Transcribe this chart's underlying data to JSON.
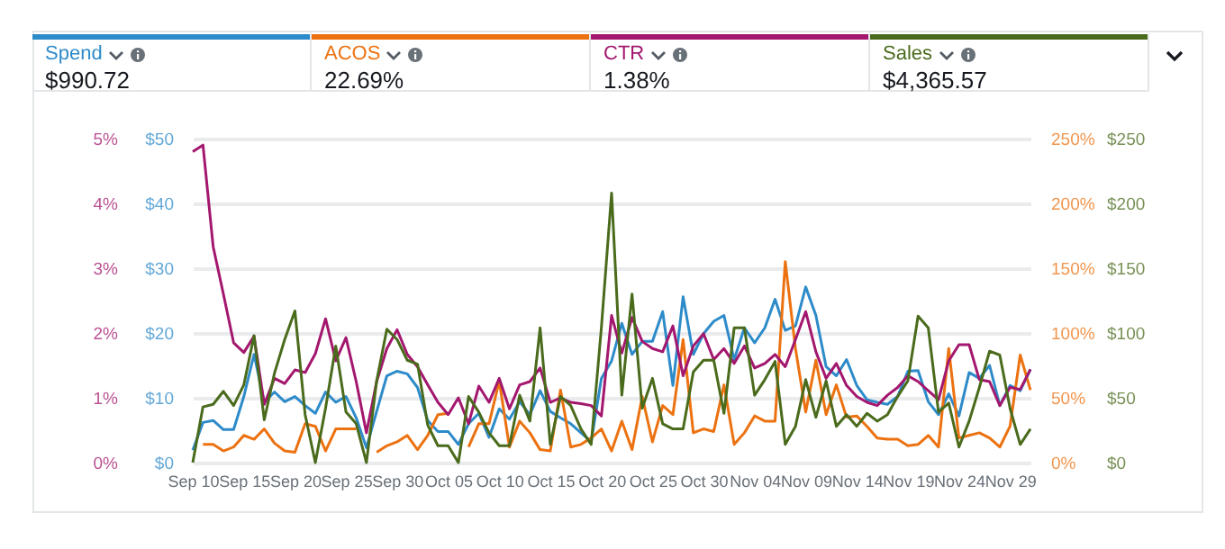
{
  "chart_data": [
    {
      "type": "line",
      "legend": "top",
      "grid": "y",
      "annotations": [
        "$990.72",
        "22.69%"
      ],
      "xlim": [
        "--09-10",
        "--12-01"
      ],
      "xticks": [
        {
          "value": "--09-10",
          "label": "Sep 10"
        },
        {
          "value": "--09-15",
          "label": "Sep 15"
        },
        {
          "value": "--09-20",
          "label": "Sep 20"
        },
        {
          "value": "--09-25",
          "label": "Sep 25"
        },
        {
          "value": "--09-30",
          "label": "Sep 30"
        },
        {
          "value": "--10-05",
          "label": "Oct 05"
        },
        {
          "value": "--10-10",
          "label": "Oct 10"
        },
        {
          "value": "--10-15",
          "label": "Oct 15"
        },
        {
          "value": "--10-20",
          "label": "Oct 20"
        },
        {
          "value": "--10-25",
          "label": "Oct 25"
        },
        {
          "value": "--10-30",
          "label": "Oct 30"
        },
        {
          "value": "--11-04",
          "label": "Nov 04"
        },
        {
          "value": "--11-09",
          "label": "Nov 09"
        },
        {
          "value": "--11-14",
          "label": "Nov 14"
        },
        {
          "value": "--11-19",
          "label": "Nov 19"
        },
        {
          "value": "--11-24",
          "label": "Nov 24"
        },
        {
          "value": "--11-29",
          "label": "Nov 29"
        }
      ],
      "ylim": [
        0,
        50
      ],
      "yticks": [
        {
          "value": 0,
          "label": "$0"
        },
        {
          "value": 10,
          "label": "$10"
        },
        {
          "value": 20,
          "label": "$20"
        },
        {
          "value": 30,
          "label": "$30"
        },
        {
          "value": 40,
          "label": "$40"
        },
        {
          "value": 50,
          "label": "$50"
        }
      ],
      "y2lim": [
        0,
        250
      ],
      "y2ticks": [
        {
          "value": 0,
          "label": "0%"
        },
        {
          "value": 50,
          "label": "50%"
        },
        {
          "value": 100,
          "label": "100%"
        },
        {
          "value": 150,
          "label": "150%"
        },
        {
          "value": 200,
          "label": "200%"
        },
        {
          "value": 250,
          "label": "250%"
        }
      ],
      "x": [
        "--09-10",
        "--09-11",
        "--09-12",
        "--09-13",
        "--09-14",
        "--09-15",
        "--09-16",
        "--09-17",
        "--09-18",
        "--09-19",
        "--09-20",
        "--09-21",
        "--09-22",
        "--09-23",
        "--09-24",
        "--09-25",
        "--09-26",
        "--09-27",
        "--09-28",
        "--09-29",
        "--09-30",
        "--10-01",
        "--10-02",
        "--10-03",
        "--10-04",
        "--10-05",
        "--10-06",
        "--10-07",
        "--10-08",
        "--10-09",
        "--10-10",
        "--10-11",
        "--10-12",
        "--10-13",
        "--10-14",
        "--10-15",
        "--10-16",
        "--10-17",
        "--10-18",
        "--10-19",
        "--10-20",
        "--10-21",
        "--10-22",
        "--10-23",
        "--10-24",
        "--10-25",
        "--10-26",
        "--10-27",
        "--10-28",
        "--10-29",
        "--10-30",
        "--10-31",
        "--11-01",
        "--11-02",
        "--11-03",
        "--11-04",
        "--11-05",
        "--11-06",
        "--11-07",
        "--11-08",
        "--11-09",
        "--11-10",
        "--11-11",
        "--11-12",
        "--11-13",
        "--11-14",
        "--11-15",
        "--11-16",
        "--11-17",
        "--11-18",
        "--11-19",
        "--11-20",
        "--11-21",
        "--11-22",
        "--11-23",
        "--11-24",
        "--11-25",
        "--11-26",
        "--11-27",
        "--11-28",
        "--11-29",
        "--11-30",
        "--12-01"
      ],
      "series": [
        {
          "name": "Spend",
          "color": "#2e8bc9",
          "values": [
            1.9,
            6.2,
            6.5,
            5.1,
            5.1,
            10.2,
            16.7,
            9.3,
            10.9,
            9.4,
            10.2,
            8.8,
            7.6,
            10.9,
            9.3,
            10.2,
            6.9,
            2.3,
            7.9,
            13.4,
            14.1,
            13.7,
            11.6,
            6.5,
            4.8,
            4.8,
            2.8,
            6.0,
            7.6,
            3.9,
            8.3,
            6.7,
            9.4,
            7.4,
            11.1,
            7.9,
            6.9,
            6.0,
            4.6,
            3.2,
            13,
            15.7,
            21.5,
            16.7,
            18.7,
            18.7,
            23.3,
            11.9,
            25.6,
            16.7,
            19.9,
            21.8,
            22.7,
            15.9,
            20.8,
            18.5,
            20.8,
            25.2,
            20.4,
            21.1,
            27.1,
            22.7,
            14.8,
            13.4,
            15.9,
            11.9,
            9.7,
            9.3,
            9.0,
            10.2,
            14.1,
            14.2,
            9.4,
            7.4,
            10.6,
            7.2,
            13.9,
            13,
            15,
            8.8,
            11.9,
            11.1,
            14.4
          ]
        },
        {
          "name": "ACOS",
          "color": "#ec7211",
          "axis": "y2",
          "values": [
            null,
            14,
            14,
            9,
            12,
            21,
            18,
            26,
            15,
            9,
            8,
            30,
            28,
            9,
            26,
            26,
            26,
            null,
            8,
            13,
            16,
            21,
            10,
            21,
            37,
            38,
            null,
            12,
            30,
            30,
            63,
            12,
            32,
            23,
            10,
            9,
            56,
            12,
            14,
            19,
            26,
            9,
            32,
            10,
            51,
            16,
            44,
            37,
            95,
            23,
            26,
            24,
            60,
            14,
            23,
            36,
            32,
            32,
            155,
            88,
            39,
            79,
            37,
            60,
            35,
            36,
            28,
            19,
            18,
            18,
            13,
            14,
            21,
            12,
            88,
            19,
            21,
            23,
            19,
            12,
            28,
            83,
            56
          ]
        }
      ]
    },
    {
      "type": "line",
      "legend": "top",
      "tick_labels": "y",
      "annotations": [
        "1.38%",
        "$4,365.57"
      ],
      "xlim": [
        "--09-10",
        "--12-01"
      ],
      "ylim": [
        0,
        5
      ],
      "yticks": [
        {
          "value": 0,
          "label": "0%"
        },
        {
          "value": 1,
          "label": "1%"
        },
        {
          "value": 2,
          "label": "2%"
        },
        {
          "value": 3,
          "label": "3%"
        },
        {
          "value": 4,
          "label": "4%"
        },
        {
          "value": 5,
          "label": "5%"
        }
      ],
      "y2lim": [
        0,
        250
      ],
      "y2ticks": [
        {
          "value": 0,
          "label": "$0"
        },
        {
          "value": 50,
          "label": "$50"
        },
        {
          "value": 100,
          "label": "$100"
        },
        {
          "value": 150,
          "label": "$150"
        },
        {
          "value": 200,
          "label": "$200"
        },
        {
          "value": 250,
          "label": "$250"
        }
      ],
      "x": [
        "--09-10",
        "--09-11",
        "--09-12",
        "--09-13",
        "--09-14",
        "--09-15",
        "--09-16",
        "--09-17",
        "--09-18",
        "--09-19",
        "--09-20",
        "--09-21",
        "--09-22",
        "--09-23",
        "--09-24",
        "--09-25",
        "--09-26",
        "--09-27",
        "--09-28",
        "--09-29",
        "--09-30",
        "--10-01",
        "--10-02",
        "--10-03",
        "--10-04",
        "--10-05",
        "--10-06",
        "--10-07",
        "--10-08",
        "--10-09",
        "--10-10",
        "--10-11",
        "--10-12",
        "--10-13",
        "--10-14",
        "--10-15",
        "--10-16",
        "--10-17",
        "--10-18",
        "--10-19",
        "--10-20",
        "--10-21",
        "--10-22",
        "--10-23",
        "--10-24",
        "--10-25",
        "--10-26",
        "--10-27",
        "--10-28",
        "--10-29",
        "--10-30",
        "--10-31",
        "--11-01",
        "--11-02",
        "--11-03",
        "--11-04",
        "--11-05",
        "--11-06",
        "--11-07",
        "--11-08",
        "--11-09",
        "--11-10",
        "--11-11",
        "--11-12",
        "--11-13",
        "--11-14",
        "--11-15",
        "--11-16",
        "--11-17",
        "--11-18",
        "--11-19",
        "--11-20",
        "--11-21",
        "--11-22",
        "--11-23",
        "--11-24",
        "--11-25",
        "--11-26",
        "--11-27",
        "--11-28",
        "--11-29",
        "--11-30",
        "--12-01"
      ],
      "series": [
        {
          "name": "CTR",
          "color": "#a3176e",
          "values": [
            4.8,
            4.9,
            3.33,
            2.6,
            1.85,
            1.7,
            1.95,
            0.9,
            1.3,
            1.22,
            1.43,
            1.39,
            1.68,
            2.22,
            1.57,
            1.93,
            1.25,
            0.46,
            1.25,
            1.76,
            2.05,
            1.67,
            1.48,
            1.2,
            0.93,
            0.74,
            1.0,
            0.6,
            1.18,
            0.93,
            1.3,
            0.83,
            1.2,
            1.25,
            1.46,
            0.93,
            1.0,
            0.93,
            0.91,
            0.88,
            0.72,
            2.27,
            1.69,
            2.24,
            1.87,
            1.76,
            1.71,
            2.11,
            1.34,
            1.8,
            1.99,
            1.59,
            1.76,
            1.53,
            1.8,
            1.46,
            1.53,
            1.67,
            1.48,
            1.9,
            2.33,
            1.71,
            1.3,
            1.53,
            1.19,
            1.02,
            0.93,
            0.88,
            1.04,
            1.16,
            1.34,
            1.25,
            1.11,
            0.97,
            1.57,
            1.82,
            1.82,
            1.28,
            1.25,
            0.88,
            1.16,
            1.13,
            1.44
          ]
        },
        {
          "name": "Sales",
          "color": "#4a6b1c",
          "axis": "y2",
          "values": [
            0,
            43,
            45,
            55,
            44,
            60,
            98,
            33,
            69,
            95,
            117,
            37,
            0,
            42,
            90,
            39,
            30,
            0,
            63,
            103,
            95,
            79,
            76,
            29,
            13,
            13,
            0,
            51,
            39,
            23,
            13,
            13,
            52,
            32,
            104,
            14,
            51,
            44,
            26,
            14,
            104,
            208,
            52,
            130,
            42,
            65,
            30,
            26,
            26,
            70,
            79,
            79,
            38,
            104,
            104,
            52,
            64,
            78,
            14,
            28,
            64,
            35,
            63,
            28,
            37,
            28,
            38,
            32,
            37,
            51,
            63,
            113,
            104,
            39,
            46,
            12,
            32,
            58,
            86,
            83,
            42,
            14,
            26
          ]
        }
      ]
    }
  ]
}
